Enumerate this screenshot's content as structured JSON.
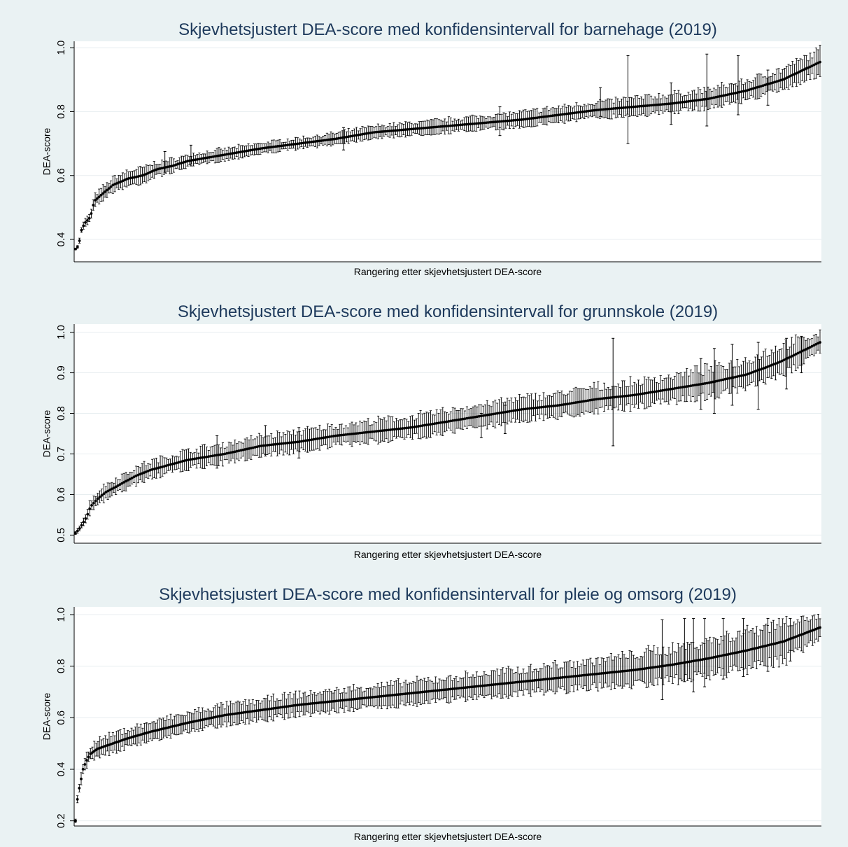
{
  "chart_data": [
    {
      "type": "scatter",
      "title": "Skjevhetsjustert DEA-score med konfidensintervall for barnehage (2019)",
      "xlabel": "Rangering etter skjevhetsjustert DEA-score",
      "ylabel": "DEA-score",
      "ylim": [
        0.33,
        1.02
      ],
      "yticks": [
        0.4,
        0.6,
        0.8,
        1.0
      ],
      "ytick_labels": [
        "0.4",
        "0.6",
        "0.8",
        "1.0"
      ],
      "grid": true,
      "n_units": 380,
      "profile": {
        "rank_fraction": [
          0,
          0.004,
          0.008,
          0.012,
          0.02,
          0.025,
          0.035,
          0.05,
          0.07,
          0.09,
          0.11,
          0.13,
          0.15,
          0.2,
          0.25,
          0.3,
          0.35,
          0.4,
          0.45,
          0.5,
          0.55,
          0.6,
          0.65,
          0.7,
          0.75,
          0.8,
          0.85,
          0.9,
          0.95,
          1.0
        ],
        "score": [
          0.37,
          0.38,
          0.43,
          0.45,
          0.47,
          0.52,
          0.54,
          0.57,
          0.59,
          0.6,
          0.62,
          0.63,
          0.645,
          0.665,
          0.685,
          0.7,
          0.715,
          0.735,
          0.745,
          0.755,
          0.765,
          0.775,
          0.79,
          0.805,
          0.815,
          0.825,
          0.84,
          0.865,
          0.9,
          0.955
        ],
        "ci_halfwidth": [
          0.004,
          0.006,
          0.008,
          0.01,
          0.012,
          0.015,
          0.018,
          0.02,
          0.022,
          0.022,
          0.02,
          0.018,
          0.017,
          0.016,
          0.015,
          0.015,
          0.016,
          0.017,
          0.018,
          0.019,
          0.02,
          0.021,
          0.022,
          0.023,
          0.025,
          0.026,
          0.027,
          0.028,
          0.03,
          0.035
        ]
      },
      "wide_intervals": [
        {
          "rank_fraction": 0.12,
          "low": 0.61,
          "high": 0.675
        },
        {
          "rank_fraction": 0.155,
          "low": 0.63,
          "high": 0.695
        },
        {
          "rank_fraction": 0.36,
          "low": 0.68,
          "high": 0.75
        },
        {
          "rank_fraction": 0.57,
          "low": 0.725,
          "high": 0.815
        },
        {
          "rank_fraction": 0.705,
          "low": 0.785,
          "high": 0.875
        },
        {
          "rank_fraction": 0.742,
          "low": 0.7,
          "high": 0.975
        },
        {
          "rank_fraction": 0.8,
          "low": 0.76,
          "high": 0.89
        },
        {
          "rank_fraction": 0.848,
          "low": 0.755,
          "high": 0.98
        },
        {
          "rank_fraction": 0.89,
          "low": 0.79,
          "high": 0.975
        },
        {
          "rank_fraction": 0.93,
          "low": 0.82,
          "high": 0.93
        }
      ]
    },
    {
      "type": "scatter",
      "title": "Skjevhetsjustert DEA-score med konfidensintervall for grunnskole (2019)",
      "xlabel": "Rangering etter skjevhetsjustert DEA-score",
      "ylabel": "DEA-score",
      "ylim": [
        0.48,
        1.02
      ],
      "yticks": [
        0.5,
        0.6,
        0.7,
        0.8,
        0.9,
        1.0
      ],
      "ytick_labels": [
        "0.5",
        "0.6",
        "0.7",
        "0.8",
        "0.9",
        "1.0"
      ],
      "grid": true,
      "n_units": 370,
      "profile": {
        "rank_fraction": [
          0,
          0.005,
          0.01,
          0.015,
          0.02,
          0.03,
          0.04,
          0.06,
          0.08,
          0.1,
          0.12,
          0.15,
          0.2,
          0.25,
          0.3,
          0.35,
          0.4,
          0.45,
          0.5,
          0.55,
          0.6,
          0.65,
          0.7,
          0.75,
          0.8,
          0.85,
          0.9,
          0.93,
          0.95,
          1.0
        ],
        "score": [
          0.505,
          0.515,
          0.53,
          0.545,
          0.57,
          0.59,
          0.605,
          0.625,
          0.645,
          0.66,
          0.67,
          0.685,
          0.7,
          0.72,
          0.73,
          0.745,
          0.755,
          0.765,
          0.78,
          0.795,
          0.81,
          0.82,
          0.835,
          0.845,
          0.86,
          0.875,
          0.895,
          0.915,
          0.93,
          0.975
        ],
        "ci_halfwidth": [
          0.005,
          0.008,
          0.01,
          0.012,
          0.015,
          0.016,
          0.018,
          0.018,
          0.019,
          0.019,
          0.02,
          0.021,
          0.022,
          0.022,
          0.023,
          0.023,
          0.024,
          0.024,
          0.025,
          0.026,
          0.026,
          0.027,
          0.028,
          0.029,
          0.03,
          0.032,
          0.034,
          0.035,
          0.036,
          0.02
        ]
      },
      "wide_intervals": [
        {
          "rank_fraction": 0.19,
          "low": 0.665,
          "high": 0.745
        },
        {
          "rank_fraction": 0.255,
          "low": 0.695,
          "high": 0.77
        },
        {
          "rank_fraction": 0.3,
          "low": 0.69,
          "high": 0.765
        },
        {
          "rank_fraction": 0.545,
          "low": 0.74,
          "high": 0.8
        },
        {
          "rank_fraction": 0.577,
          "low": 0.75,
          "high": 0.82
        },
        {
          "rank_fraction": 0.722,
          "low": 0.72,
          "high": 0.985
        },
        {
          "rank_fraction": 0.84,
          "low": 0.81,
          "high": 0.935
        },
        {
          "rank_fraction": 0.858,
          "low": 0.8,
          "high": 0.96
        },
        {
          "rank_fraction": 0.882,
          "low": 0.82,
          "high": 0.97
        },
        {
          "rank_fraction": 0.917,
          "low": 0.81,
          "high": 0.975
        },
        {
          "rank_fraction": 0.955,
          "low": 0.86,
          "high": 0.985
        },
        {
          "rank_fraction": 0.975,
          "low": 0.9,
          "high": 0.99
        }
      ]
    },
    {
      "type": "scatter",
      "title": "Skjevhetsjustert DEA-score med konfidensintervall for pleie og omsorg (2019)",
      "xlabel": "Rangering etter skjevhetsjustert DEA-score",
      "ylabel": "DEA-score",
      "ylim": [
        0.18,
        1.03
      ],
      "yticks": [
        0.2,
        0.4,
        0.6,
        0.8,
        1.0
      ],
      "ytick_labels": [
        "0.2",
        "0.4",
        "0.6",
        "0.8",
        "1.0"
      ],
      "grid": true,
      "n_units": 400,
      "profile": {
        "rank_fraction": [
          0,
          0.003,
          0.006,
          0.01,
          0.014,
          0.02,
          0.03,
          0.05,
          0.07,
          0.1,
          0.15,
          0.2,
          0.25,
          0.3,
          0.35,
          0.4,
          0.45,
          0.5,
          0.55,
          0.6,
          0.65,
          0.7,
          0.75,
          0.8,
          0.85,
          0.9,
          0.95,
          1.0
        ],
        "score": [
          0.2,
          0.3,
          0.34,
          0.4,
          0.43,
          0.46,
          0.48,
          0.5,
          0.52,
          0.545,
          0.58,
          0.61,
          0.63,
          0.65,
          0.665,
          0.68,
          0.695,
          0.71,
          0.725,
          0.74,
          0.755,
          0.77,
          0.785,
          0.805,
          0.83,
          0.86,
          0.895,
          0.95
        ],
        "ci_halfwidth": [
          0.005,
          0.02,
          0.02,
          0.022,
          0.025,
          0.027,
          0.03,
          0.032,
          0.033,
          0.033,
          0.034,
          0.035,
          0.036,
          0.037,
          0.038,
          0.039,
          0.04,
          0.041,
          0.043,
          0.045,
          0.048,
          0.05,
          0.055,
          0.06,
          0.065,
          0.07,
          0.075,
          0.04
        ]
      },
      "wide_intervals": [
        {
          "rank_fraction": 0.788,
          "low": 0.67,
          "high": 0.98
        },
        {
          "rank_fraction": 0.818,
          "low": 0.74,
          "high": 0.985
        },
        {
          "rank_fraction": 0.83,
          "low": 0.7,
          "high": 0.985
        },
        {
          "rank_fraction": 0.845,
          "low": 0.72,
          "high": 0.985
        },
        {
          "rank_fraction": 0.87,
          "low": 0.75,
          "high": 0.985
        },
        {
          "rank_fraction": 0.897,
          "low": 0.76,
          "high": 0.985
        },
        {
          "rank_fraction": 0.93,
          "low": 0.78,
          "high": 0.985
        },
        {
          "rank_fraction": 0.96,
          "low": 0.82,
          "high": 0.985
        }
      ]
    }
  ]
}
